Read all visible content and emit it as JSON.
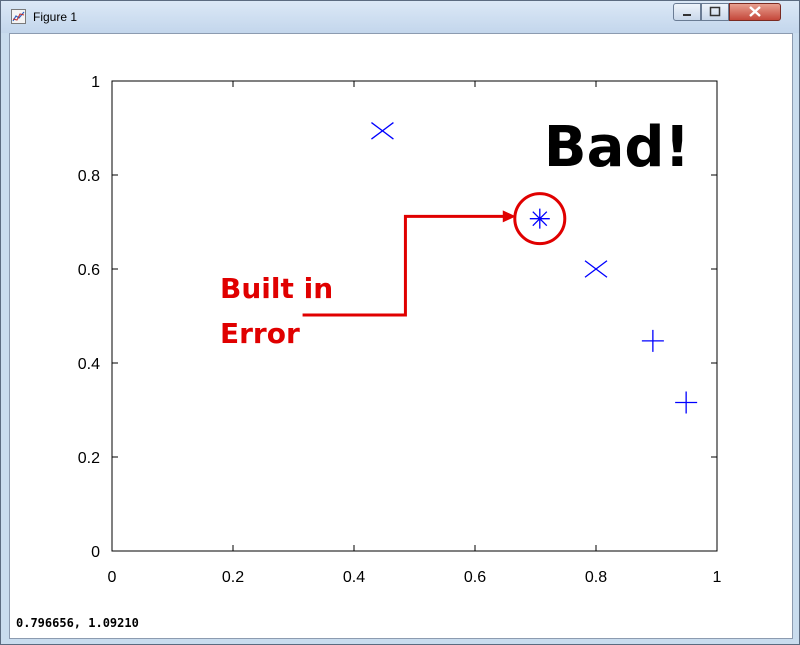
{
  "window": {
    "title": "Figure 1"
  },
  "status": {
    "coordinates": "0.796656,  1.09210"
  },
  "chart_data": {
    "type": "scatter",
    "xlim": [
      0,
      1
    ],
    "ylim": [
      0,
      1
    ],
    "x_ticks": [
      "0",
      "0.2",
      "0.4",
      "0.6",
      "0.8",
      "1"
    ],
    "y_ticks": [
      "0",
      "0.2",
      "0.4",
      "0.6",
      "0.8",
      "1"
    ],
    "grid": false,
    "marker_color": "#0000ff",
    "series": [
      {
        "marker": "x",
        "points": [
          {
            "x": 0.447,
            "y": 0.894
          },
          {
            "x": 0.8,
            "y": 0.6
          }
        ]
      },
      {
        "marker": "star",
        "points": [
          {
            "x": 0.7071,
            "y": 0.7071
          }
        ]
      },
      {
        "marker": "plus",
        "points": [
          {
            "x": 0.894,
            "y": 0.447
          },
          {
            "x": 0.949,
            "y": 0.316
          }
        ]
      }
    ],
    "annotations": {
      "headline": "Bad!",
      "callout_line1": "Built in",
      "callout_line2": "Error",
      "callout_color": "#e00000",
      "highlight_point": {
        "x": 0.7071,
        "y": 0.7071
      },
      "arrow_bend_x": 0.485,
      "label_point": {
        "x": 0.315,
        "y": 0.502
      },
      "bend_y": 0.712
    }
  }
}
